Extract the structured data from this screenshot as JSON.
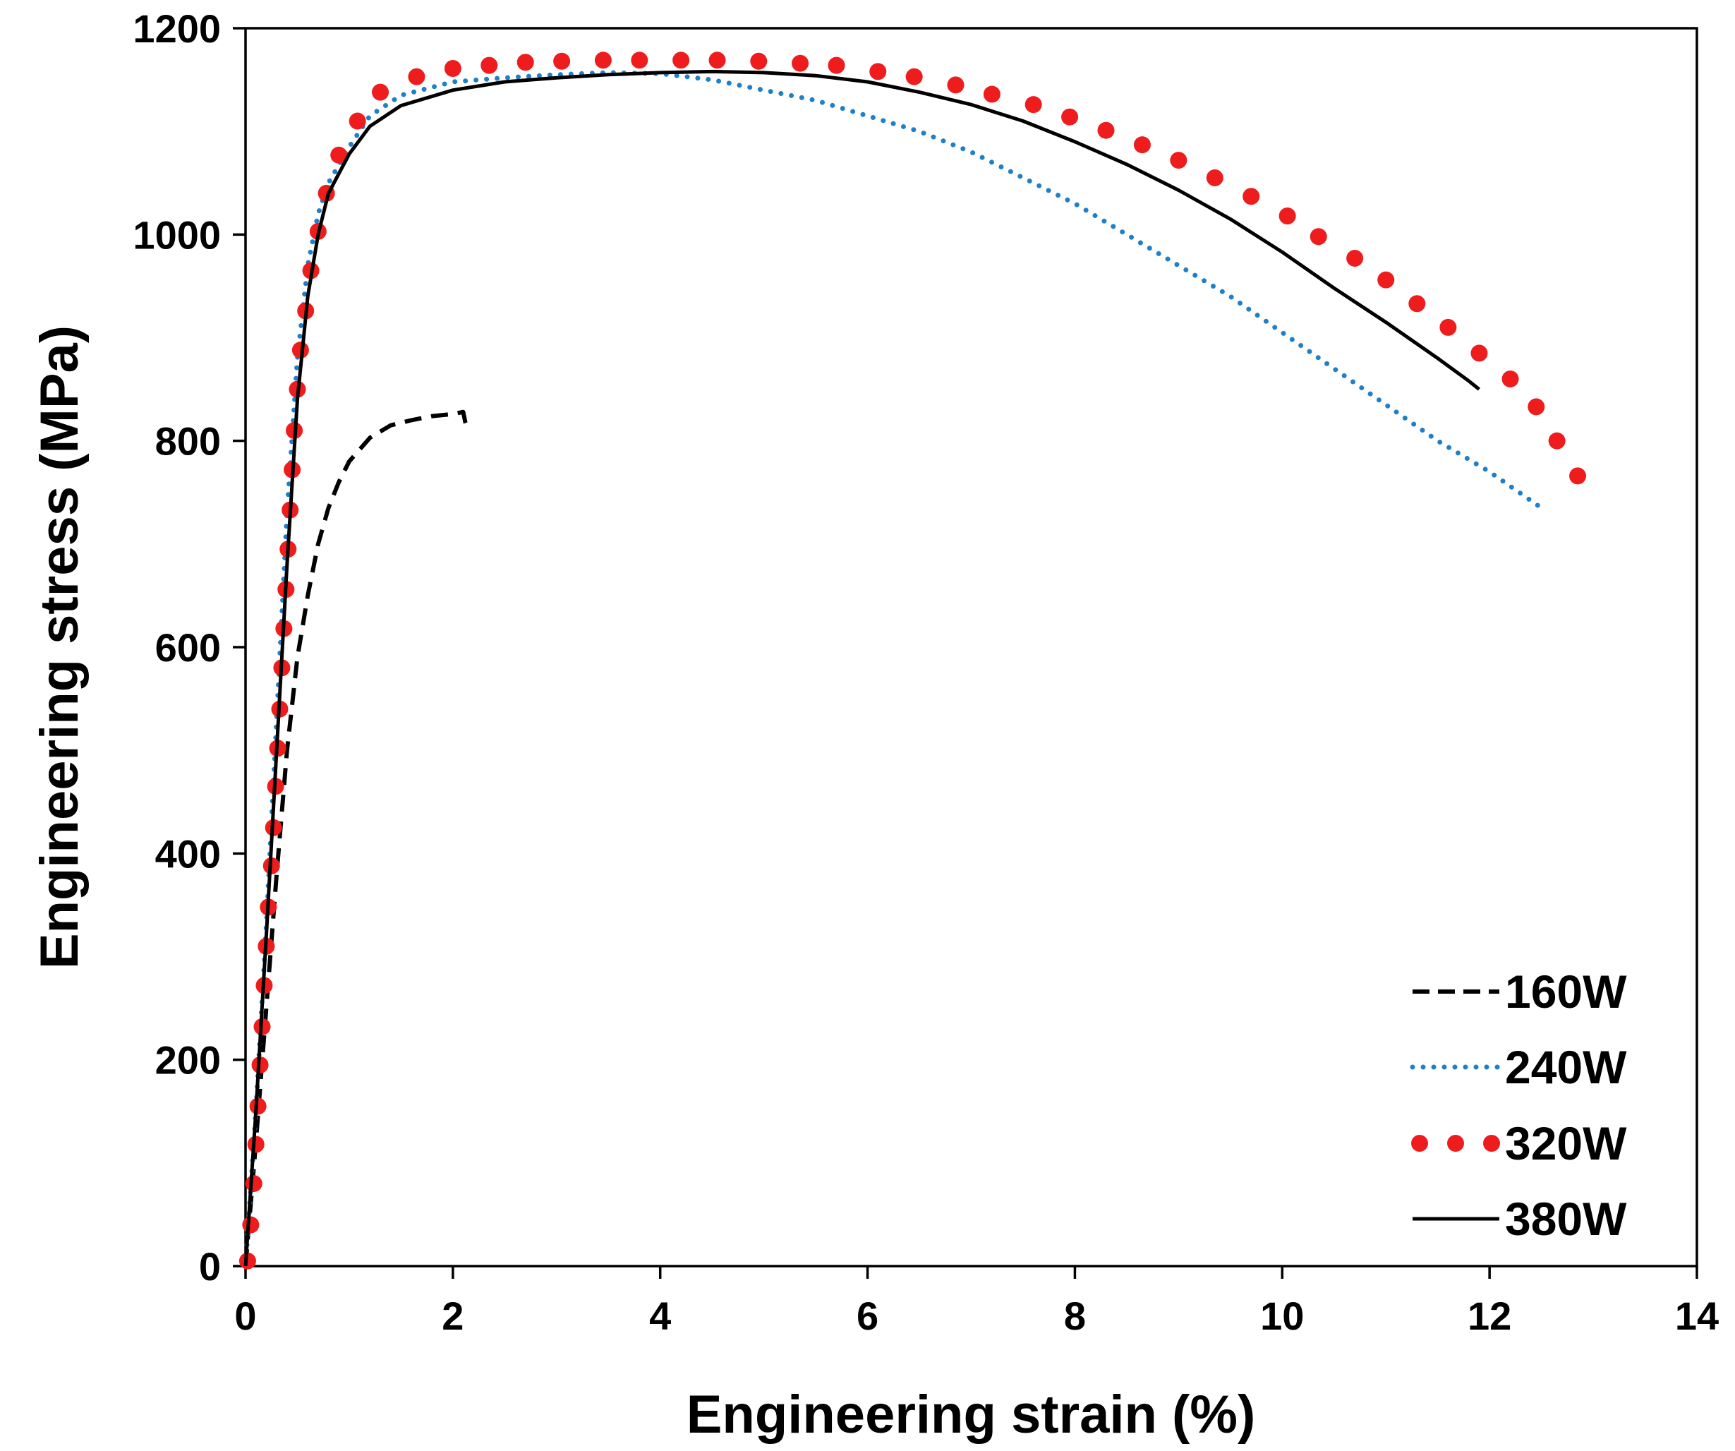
{
  "chart_data": {
    "type": "line",
    "title": "",
    "xlabel": "Engineering strain (%)",
    "ylabel": "Engineering stress (MPa)",
    "xlim": [
      0,
      14
    ],
    "ylim": [
      0,
      1200
    ],
    "xticks": [
      0,
      2,
      4,
      6,
      8,
      10,
      12,
      14
    ],
    "yticks": [
      0,
      200,
      400,
      600,
      800,
      1000,
      1200
    ],
    "grid": false,
    "legend_position": "bottom-right",
    "series": [
      {
        "name": "160W",
        "style": "dashed",
        "color": "#000000",
        "points": [
          [
            0,
            0
          ],
          [
            0.1,
            120
          ],
          [
            0.2,
            250
          ],
          [
            0.3,
            380
          ],
          [
            0.4,
            500
          ],
          [
            0.5,
            590
          ],
          [
            0.6,
            650
          ],
          [
            0.7,
            700
          ],
          [
            0.8,
            735
          ],
          [
            0.9,
            760
          ],
          [
            1.0,
            780
          ],
          [
            1.2,
            803
          ],
          [
            1.4,
            815
          ],
          [
            1.6,
            820
          ],
          [
            1.8,
            824
          ],
          [
            2.0,
            826
          ],
          [
            2.1,
            828
          ],
          [
            2.12,
            818
          ],
          [
            2.14,
            812
          ]
        ]
      },
      {
        "name": "240W",
        "style": "dotted",
        "color": "#1f7fc8",
        "points": [
          [
            0,
            0
          ],
          [
            0.1,
            150
          ],
          [
            0.2,
            330
          ],
          [
            0.3,
            530
          ],
          [
            0.4,
            730
          ],
          [
            0.5,
            880
          ],
          [
            0.6,
            970
          ],
          [
            0.7,
            1020
          ],
          [
            0.8,
            1050
          ],
          [
            1.0,
            1085
          ],
          [
            1.2,
            1115
          ],
          [
            1.5,
            1135
          ],
          [
            2.0,
            1148
          ],
          [
            2.5,
            1152
          ],
          [
            3.0,
            1155
          ],
          [
            3.5,
            1157
          ],
          [
            4.0,
            1156
          ],
          [
            4.5,
            1150
          ],
          [
            5.0,
            1140
          ],
          [
            5.5,
            1130
          ],
          [
            6.0,
            1115
          ],
          [
            6.5,
            1100
          ],
          [
            7.0,
            1080
          ],
          [
            7.5,
            1055
          ],
          [
            8.0,
            1030
          ],
          [
            8.5,
            1000
          ],
          [
            9.0,
            970
          ],
          [
            9.5,
            940
          ],
          [
            10.0,
            905
          ],
          [
            10.5,
            870
          ],
          [
            11.0,
            835
          ],
          [
            11.5,
            800
          ],
          [
            12.0,
            770
          ],
          [
            12.5,
            735
          ]
        ]
      },
      {
        "name": "320W",
        "style": "dots",
        "color": "#ee1c1c",
        "points": [
          [
            0.02,
            5
          ],
          [
            0.05,
            40
          ],
          [
            0.08,
            80
          ],
          [
            0.1,
            118
          ],
          [
            0.12,
            155
          ],
          [
            0.14,
            195
          ],
          [
            0.16,
            232
          ],
          [
            0.18,
            272
          ],
          [
            0.2,
            310
          ],
          [
            0.22,
            348
          ],
          [
            0.25,
            388
          ],
          [
            0.27,
            425
          ],
          [
            0.29,
            465
          ],
          [
            0.31,
            502
          ],
          [
            0.33,
            540
          ],
          [
            0.35,
            580
          ],
          [
            0.37,
            618
          ],
          [
            0.39,
            656
          ],
          [
            0.41,
            695
          ],
          [
            0.43,
            733
          ],
          [
            0.45,
            772
          ],
          [
            0.47,
            810
          ],
          [
            0.5,
            850
          ],
          [
            0.53,
            888
          ],
          [
            0.58,
            926
          ],
          [
            0.63,
            965
          ],
          [
            0.7,
            1003
          ],
          [
            0.78,
            1040
          ],
          [
            0.9,
            1077
          ],
          [
            1.08,
            1110
          ],
          [
            1.3,
            1138
          ],
          [
            1.65,
            1153
          ],
          [
            2.0,
            1161
          ],
          [
            2.35,
            1164
          ],
          [
            2.7,
            1167
          ],
          [
            3.05,
            1168
          ],
          [
            3.45,
            1169
          ],
          [
            3.8,
            1169
          ],
          [
            4.2,
            1169
          ],
          [
            4.55,
            1169
          ],
          [
            4.95,
            1168
          ],
          [
            5.35,
            1166
          ],
          [
            5.7,
            1164
          ],
          [
            6.1,
            1158
          ],
          [
            6.45,
            1153
          ],
          [
            6.85,
            1145
          ],
          [
            7.2,
            1136
          ],
          [
            7.6,
            1126
          ],
          [
            7.95,
            1114
          ],
          [
            8.3,
            1101
          ],
          [
            8.65,
            1087
          ],
          [
            9.0,
            1072
          ],
          [
            9.35,
            1055
          ],
          [
            9.7,
            1037
          ],
          [
            10.05,
            1018
          ],
          [
            10.35,
            998
          ],
          [
            10.7,
            977
          ],
          [
            11.0,
            956
          ],
          [
            11.3,
            933
          ],
          [
            11.6,
            910
          ],
          [
            11.9,
            885
          ],
          [
            12.2,
            860
          ],
          [
            12.45,
            833
          ],
          [
            12.65,
            800
          ],
          [
            12.85,
            766
          ]
        ]
      },
      {
        "name": "380W",
        "style": "solid",
        "color": "#000000",
        "points": [
          [
            0,
            0
          ],
          [
            0.1,
            150
          ],
          [
            0.2,
            320
          ],
          [
            0.3,
            500
          ],
          [
            0.4,
            680
          ],
          [
            0.5,
            840
          ],
          [
            0.6,
            940
          ],
          [
            0.7,
            1000
          ],
          [
            0.8,
            1040
          ],
          [
            1.0,
            1078
          ],
          [
            1.2,
            1105
          ],
          [
            1.5,
            1125
          ],
          [
            2.0,
            1140
          ],
          [
            2.5,
            1148
          ],
          [
            3.0,
            1152
          ],
          [
            3.5,
            1155
          ],
          [
            4.0,
            1157
          ],
          [
            4.5,
            1158
          ],
          [
            5.0,
            1157
          ],
          [
            5.5,
            1154
          ],
          [
            6.0,
            1148
          ],
          [
            6.5,
            1138
          ],
          [
            7.0,
            1126
          ],
          [
            7.5,
            1110
          ],
          [
            8.0,
            1090
          ],
          [
            8.5,
            1068
          ],
          [
            9.0,
            1043
          ],
          [
            9.5,
            1015
          ],
          [
            10.0,
            983
          ],
          [
            10.5,
            948
          ],
          [
            11.0,
            915
          ],
          [
            11.5,
            880
          ],
          [
            11.8,
            858
          ],
          [
            11.9,
            850
          ]
        ]
      }
    ]
  }
}
